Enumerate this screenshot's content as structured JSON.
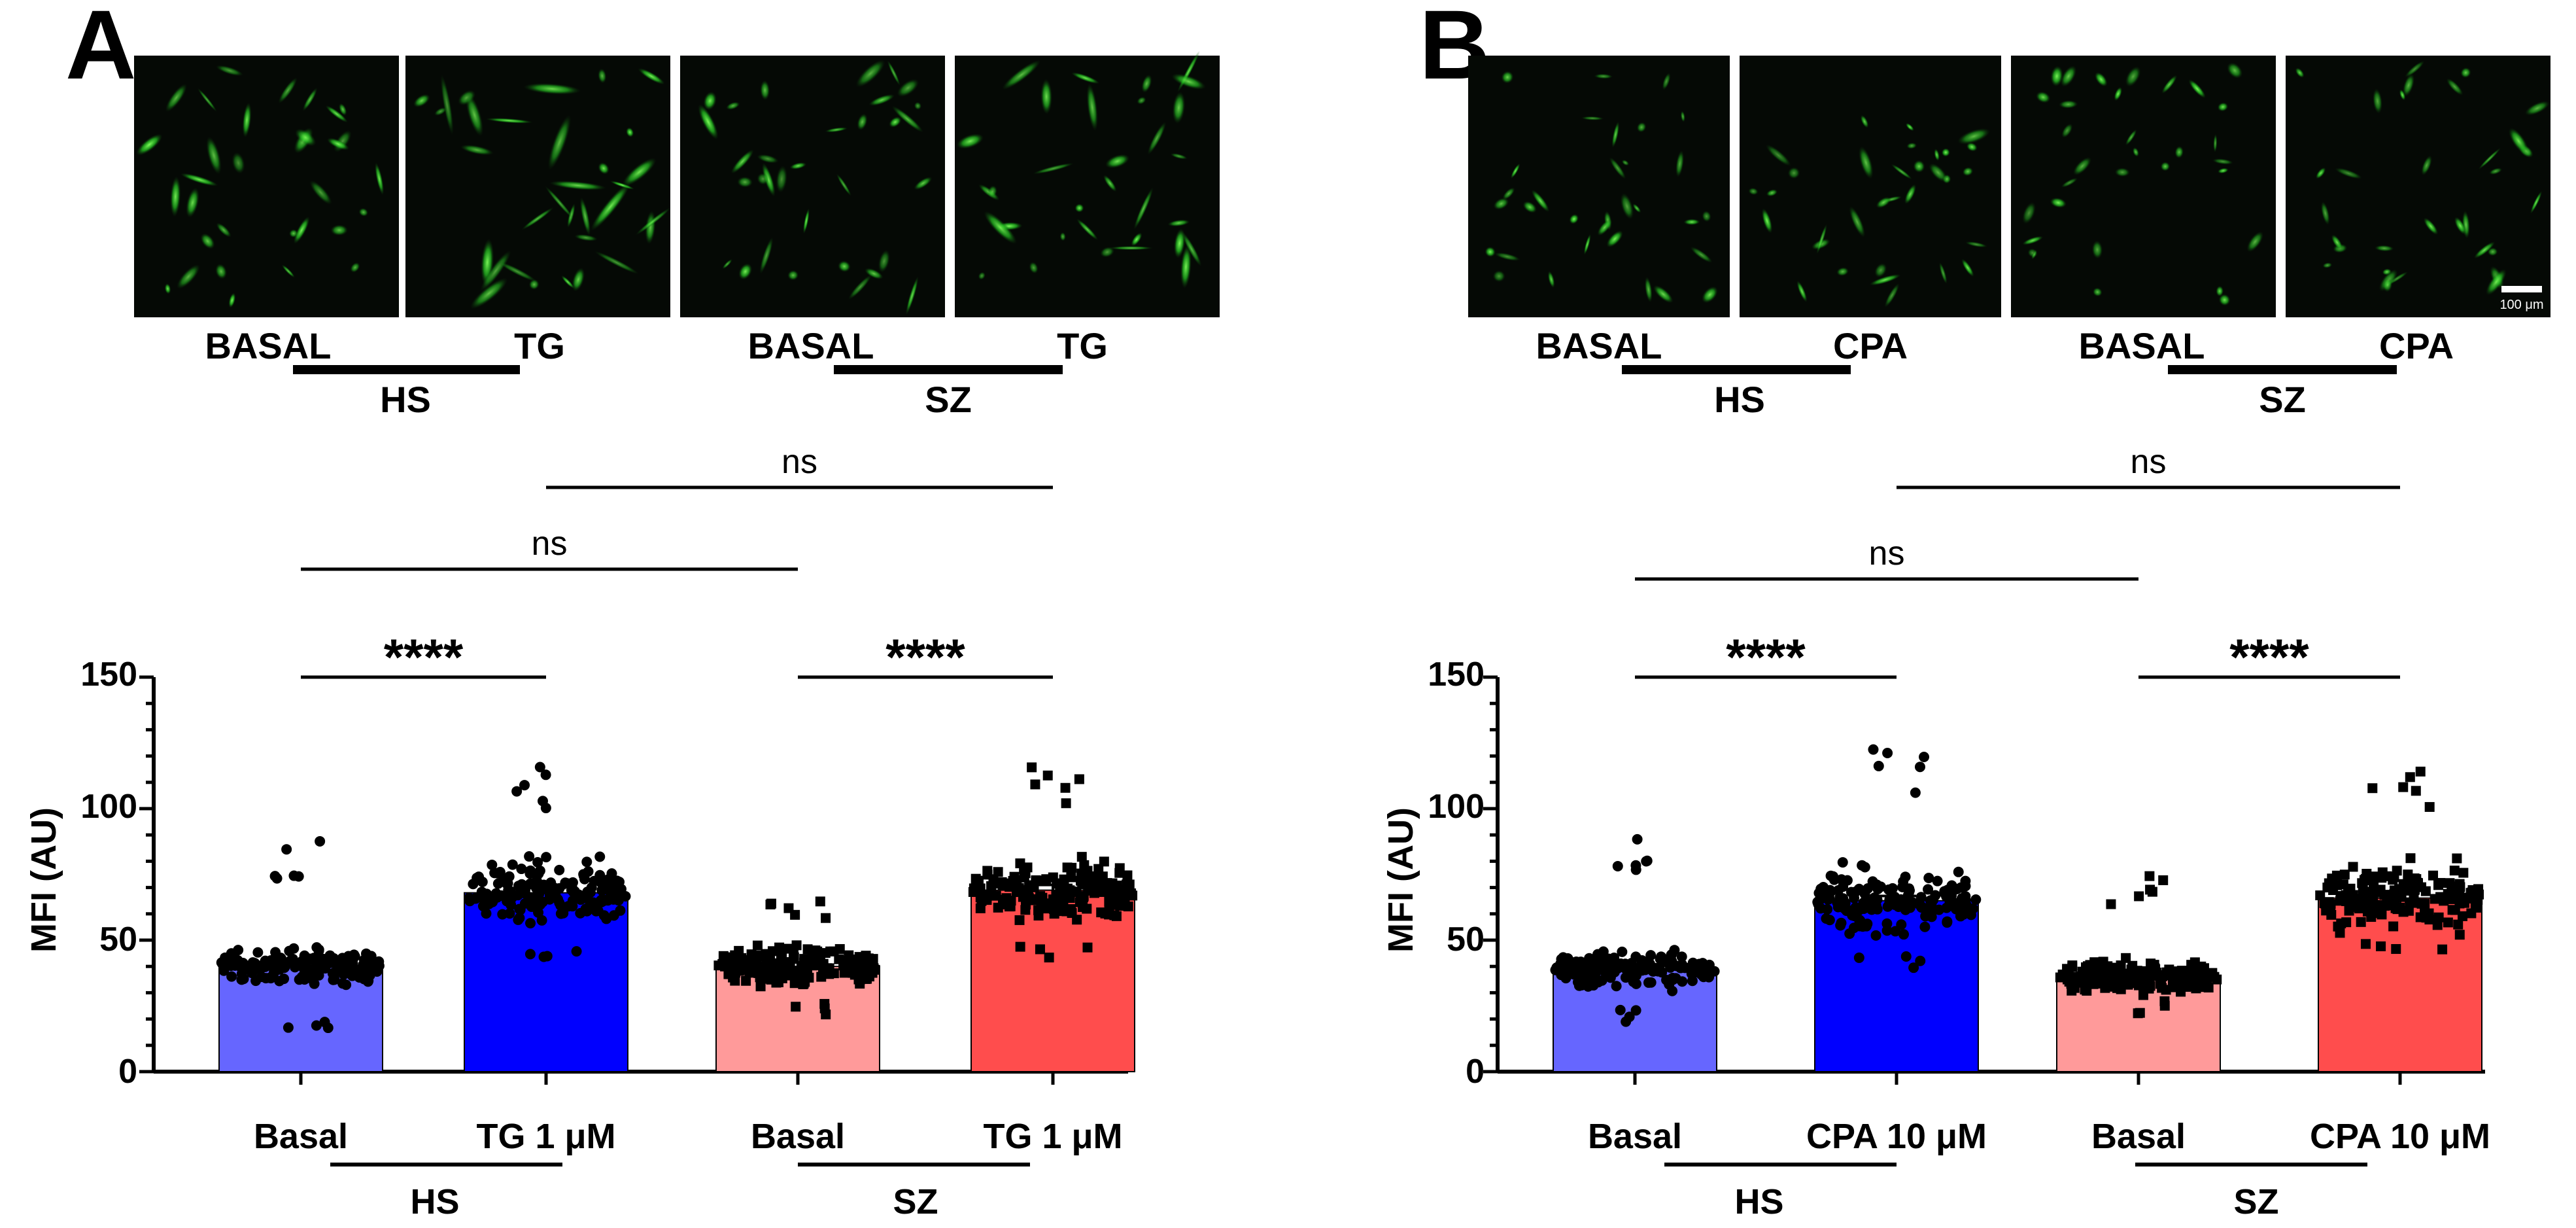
{
  "panels": [
    {
      "letter": "A",
      "image_labels": [
        "BASAL",
        "TG",
        "BASAL",
        "TG"
      ],
      "image_groups": [
        "HS",
        "SZ"
      ],
      "chart_title": "",
      "ylabel": "MFI (AU)",
      "ylim": [
        0,
        150
      ],
      "yticks": [
        "0",
        "50",
        "100",
        "150"
      ],
      "categories": [
        "Basal",
        "TG 1 μM",
        "Basal",
        "TG 1 μM"
      ],
      "groups": [
        "HS",
        "SZ"
      ],
      "significance": [
        "****",
        "****",
        "ns",
        "ns"
      ],
      "colors": [
        "#6666ff",
        "#0000ff",
        "#ff9a9a",
        "#ff4d4d"
      ]
    },
    {
      "letter": "B",
      "image_labels": [
        "BASAL",
        "CPA",
        "BASAL",
        "CPA"
      ],
      "image_groups": [
        "HS",
        "SZ"
      ],
      "scale_bar": "100 μm",
      "ylabel": "MFI (AU)",
      "ylim": [
        0,
        150
      ],
      "yticks": [
        "0",
        "50",
        "100",
        "150"
      ],
      "categories": [
        "Basal",
        "CPA 10 μM",
        "Basal",
        "CPA 10 μM"
      ],
      "groups": [
        "HS",
        "SZ"
      ],
      "significance": [
        "****",
        "****",
        "ns",
        "ns"
      ],
      "colors": [
        "#6666ff",
        "#0000ff",
        "#ff9a9a",
        "#ff4d4d"
      ]
    }
  ],
  "chart_data": [
    {
      "type": "bar",
      "panel": "A",
      "ylabel": "MFI (AU)",
      "ylim": [
        0,
        150
      ],
      "categories": [
        "Basal",
        "TG 1 μM",
        "Basal",
        "TG 1 μM"
      ],
      "groups": [
        "HS",
        "HS",
        "SZ",
        "SZ"
      ],
      "values": [
        40,
        68,
        40,
        69
      ],
      "errors": [
        1.5,
        1.8,
        1.5,
        2.0
      ],
      "point_ranges": [
        [
          15,
          90
        ],
        [
          40,
          117
        ],
        [
          20,
          67
        ],
        [
          43,
          117
        ]
      ],
      "comparisons": [
        {
          "a": 0,
          "b": 1,
          "label": "****"
        },
        {
          "a": 2,
          "b": 3,
          "label": "****"
        },
        {
          "a": 0,
          "b": 2,
          "label": "ns"
        },
        {
          "a": 1,
          "b": 3,
          "label": "ns"
        }
      ]
    },
    {
      "type": "bar",
      "panel": "B",
      "ylabel": "MFI (AU)",
      "ylim": [
        0,
        150
      ],
      "categories": [
        "Basal",
        "CPA 10 μM",
        "Basal",
        "CPA 10 μM"
      ],
      "groups": [
        "HS",
        "HS",
        "SZ",
        "SZ"
      ],
      "values": [
        39,
        65,
        36,
        66
      ],
      "errors": [
        1.5,
        1.8,
        1.2,
        1.8
      ],
      "point_ranges": [
        [
          18,
          89
        ],
        [
          38,
          127
        ],
        [
          22,
          75
        ],
        [
          45,
          115
        ]
      ],
      "comparisons": [
        {
          "a": 0,
          "b": 1,
          "label": "****"
        },
        {
          "a": 2,
          "b": 3,
          "label": "****"
        },
        {
          "a": 0,
          "b": 2,
          "label": "ns"
        },
        {
          "a": 1,
          "b": 3,
          "label": "ns"
        }
      ]
    }
  ]
}
